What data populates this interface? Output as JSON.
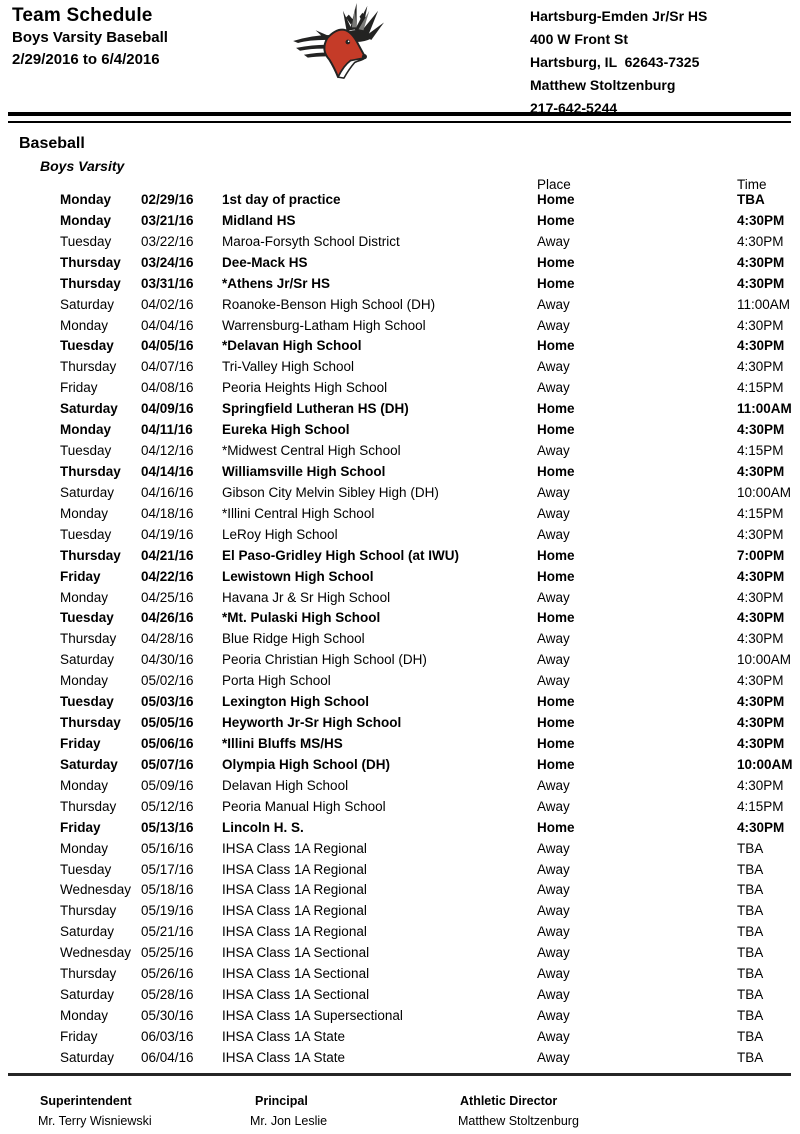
{
  "header": {
    "title": "Team Schedule",
    "subtitle": "Boys Varsity Baseball",
    "date_range": "2/29/2016 to 6/4/2016",
    "logo_icon": "stag-mascot-logo",
    "school": {
      "name": "Hartsburg-Emden Jr/Sr HS",
      "address_line1": "400 W Front St",
      "address_line2": "Hartsburg, IL  62643-7325",
      "contact_name": "Matthew Stoltzenburg",
      "contact_phone": "217-642-5244"
    }
  },
  "section": {
    "sport": "Baseball",
    "team": "Boys Varsity"
  },
  "table": {
    "columns": {
      "place": "Place",
      "time": "Time"
    },
    "rows": [
      {
        "day": "Monday",
        "date": "02/29/16",
        "opponent": "1st day of practice",
        "place": "Home",
        "time": "TBA",
        "bold": true
      },
      {
        "day": "Monday",
        "date": "03/21/16",
        "opponent": "Midland HS",
        "place": "Home",
        "time": "4:30PM",
        "bold": true
      },
      {
        "day": "Tuesday",
        "date": "03/22/16",
        "opponent": "Maroa-Forsyth School District",
        "place": "Away",
        "time": "4:30PM",
        "bold": false
      },
      {
        "day": "Thursday",
        "date": "03/24/16",
        "opponent": "Dee-Mack HS",
        "place": "Home",
        "time": "4:30PM",
        "bold": true
      },
      {
        "day": "Thursday",
        "date": "03/31/16",
        "opponent": "*Athens Jr/Sr HS",
        "place": "Home",
        "time": "4:30PM",
        "bold": true
      },
      {
        "day": "Saturday",
        "date": "04/02/16",
        "opponent": "Roanoke-Benson High School (DH)",
        "place": "Away",
        "time": "11:00AM",
        "bold": false
      },
      {
        "day": "Monday",
        "date": "04/04/16",
        "opponent": "Warrensburg-Latham High School",
        "place": "Away",
        "time": "4:30PM",
        "bold": false
      },
      {
        "day": "Tuesday",
        "date": "04/05/16",
        "opponent": "*Delavan High School",
        "place": "Home",
        "time": "4:30PM",
        "bold": true
      },
      {
        "day": "Thursday",
        "date": "04/07/16",
        "opponent": "Tri-Valley High School",
        "place": "Away",
        "time": "4:30PM",
        "bold": false
      },
      {
        "day": "Friday",
        "date": "04/08/16",
        "opponent": "Peoria Heights High School",
        "place": "Away",
        "time": "4:15PM",
        "bold": false
      },
      {
        "day": "Saturday",
        "date": "04/09/16",
        "opponent": "Springfield Lutheran HS (DH)",
        "place": "Home",
        "time": "11:00AM",
        "bold": true
      },
      {
        "day": "Monday",
        "date": "04/11/16",
        "opponent": "Eureka High School",
        "place": "Home",
        "time": "4:30PM",
        "bold": true
      },
      {
        "day": "Tuesday",
        "date": "04/12/16",
        "opponent": "*Midwest Central High School",
        "place": "Away",
        "time": "4:15PM",
        "bold": false
      },
      {
        "day": "Thursday",
        "date": "04/14/16",
        "opponent": "Williamsville High School",
        "place": "Home",
        "time": "4:30PM",
        "bold": true
      },
      {
        "day": "Saturday",
        "date": "04/16/16",
        "opponent": "Gibson City Melvin Sibley High (DH)",
        "place": "Away",
        "time": "10:00AM",
        "bold": false
      },
      {
        "day": "Monday",
        "date": "04/18/16",
        "opponent": "*Illini Central High School",
        "place": "Away",
        "time": "4:15PM",
        "bold": false
      },
      {
        "day": "Tuesday",
        "date": "04/19/16",
        "opponent": "LeRoy High School",
        "place": "Away",
        "time": "4:30PM",
        "bold": false
      },
      {
        "day": "Thursday",
        "date": "04/21/16",
        "opponent": "El Paso-Gridley High School (at IWU)",
        "place": "Home",
        "time": "7:00PM",
        "bold": true
      },
      {
        "day": "Friday",
        "date": "04/22/16",
        "opponent": "Lewistown High School",
        "place": "Home",
        "time": "4:30PM",
        "bold": true
      },
      {
        "day": "Monday",
        "date": "04/25/16",
        "opponent": "Havana Jr & Sr High School",
        "place": "Away",
        "time": "4:30PM",
        "bold": false
      },
      {
        "day": "Tuesday",
        "date": "04/26/16",
        "opponent": "*Mt. Pulaski High School",
        "place": "Home",
        "time": "4:30PM",
        "bold": true
      },
      {
        "day": "Thursday",
        "date": "04/28/16",
        "opponent": "Blue Ridge High School",
        "place": "Away",
        "time": "4:30PM",
        "bold": false
      },
      {
        "day": "Saturday",
        "date": "04/30/16",
        "opponent": "Peoria Christian High School (DH)",
        "place": "Away",
        "time": "10:00AM",
        "bold": false
      },
      {
        "day": "Monday",
        "date": "05/02/16",
        "opponent": "Porta High School",
        "place": "Away",
        "time": "4:30PM",
        "bold": false
      },
      {
        "day": "Tuesday",
        "date": "05/03/16",
        "opponent": "Lexington High School",
        "place": "Home",
        "time": "4:30PM",
        "bold": true
      },
      {
        "day": "Thursday",
        "date": "05/05/16",
        "opponent": "Heyworth Jr-Sr High School",
        "place": "Home",
        "time": "4:30PM",
        "bold": true
      },
      {
        "day": "Friday",
        "date": "05/06/16",
        "opponent": "*Illini Bluffs MS/HS",
        "place": "Home",
        "time": "4:30PM",
        "bold": true
      },
      {
        "day": "Saturday",
        "date": "05/07/16",
        "opponent": "Olympia High School (DH)",
        "place": "Home",
        "time": "10:00AM",
        "bold": true
      },
      {
        "day": "Monday",
        "date": "05/09/16",
        "opponent": "Delavan High School",
        "place": "Away",
        "time": "4:30PM",
        "bold": false
      },
      {
        "day": "Thursday",
        "date": "05/12/16",
        "opponent": "Peoria Manual High School",
        "place": "Away",
        "time": "4:15PM",
        "bold": false
      },
      {
        "day": "Friday",
        "date": "05/13/16",
        "opponent": "Lincoln H. S.",
        "place": "Home",
        "time": "4:30PM",
        "bold": true
      },
      {
        "day": "Monday",
        "date": "05/16/16",
        "opponent": "IHSA Class 1A Regional",
        "place": "Away",
        "time": "TBA",
        "bold": false
      },
      {
        "day": "Tuesday",
        "date": "05/17/16",
        "opponent": "IHSA Class 1A Regional",
        "place": "Away",
        "time": "TBA",
        "bold": false
      },
      {
        "day": "Wednesday",
        "date": "05/18/16",
        "opponent": "IHSA Class 1A Regional",
        "place": "Away",
        "time": "TBA",
        "bold": false
      },
      {
        "day": "Thursday",
        "date": "05/19/16",
        "opponent": "IHSA Class 1A Regional",
        "place": "Away",
        "time": "TBA",
        "bold": false
      },
      {
        "day": "Saturday",
        "date": "05/21/16",
        "opponent": "IHSA Class 1A Regional",
        "place": "Away",
        "time": "TBA",
        "bold": false
      },
      {
        "day": "Wednesday",
        "date": "05/25/16",
        "opponent": "IHSA Class 1A Sectional",
        "place": "Away",
        "time": "TBA",
        "bold": false
      },
      {
        "day": "Thursday",
        "date": "05/26/16",
        "opponent": "IHSA Class 1A Sectional",
        "place": "Away",
        "time": "TBA",
        "bold": false
      },
      {
        "day": "Saturday",
        "date": "05/28/16",
        "opponent": "IHSA Class 1A Sectional",
        "place": "Away",
        "time": "TBA",
        "bold": false
      },
      {
        "day": "Monday",
        "date": "05/30/16",
        "opponent": "IHSA Class 1A Supersectional",
        "place": "Away",
        "time": "TBA",
        "bold": false
      },
      {
        "day": "Friday",
        "date": "06/03/16",
        "opponent": "IHSA Class 1A State",
        "place": "Away",
        "time": "TBA",
        "bold": false
      },
      {
        "day": "Saturday",
        "date": "06/04/16",
        "opponent": "IHSA Class 1A State",
        "place": "Away",
        "time": "TBA",
        "bold": false
      }
    ]
  },
  "footer": {
    "columns": [
      {
        "title": "Superintendent",
        "name": "Mr. Terry Wisniewski"
      },
      {
        "title": "Principal",
        "name": "Mr. Jon Leslie"
      },
      {
        "title": "Athletic Director",
        "name": "Matthew Stoltzenburg"
      }
    ]
  },
  "colors": {
    "logo_red": "#c53b28",
    "logo_dark": "#232322",
    "rule_black": "#000000",
    "footer_rule": "#262626"
  }
}
